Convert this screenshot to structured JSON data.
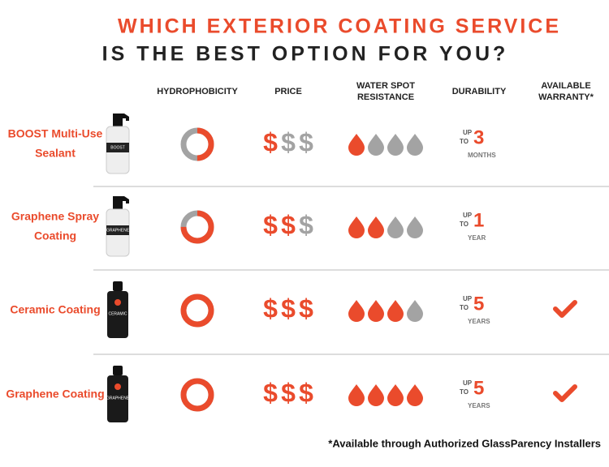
{
  "title": {
    "line1": "WHICH EXTERIOR COATING SERVICE",
    "line2": "IS THE BEST OPTION FOR YOU?"
  },
  "columns": [
    [
      "HYDROPHOBICITY"
    ],
    [
      "PRICE"
    ],
    [
      "WATER SPOT",
      "RESISTANCE"
    ],
    [
      "DURABILITY"
    ],
    [
      "AVAILABLE",
      "WARRANTY*"
    ]
  ],
  "price_symbol": "$",
  "scale": {
    "price": 3,
    "water_spot_resistance": 4
  },
  "rows": [
    {
      "name": [
        "BOOST Multi-Use",
        "Sealant"
      ],
      "bottle_label": "BOOST",
      "bottle": "spray",
      "hydrophobicity": 50,
      "price": 1,
      "water_spot_resistance": 1,
      "durability": {
        "up": "UP",
        "to": "TO",
        "value": 3,
        "unit": "MONTHS"
      },
      "warranty": false
    },
    {
      "name": [
        "Graphene Spray",
        "Coating"
      ],
      "bottle_label": "GRAPHENE",
      "bottle": "spray",
      "hydrophobicity": 75,
      "price": 2,
      "water_spot_resistance": 2,
      "durability": {
        "up": "UP",
        "to": "TO",
        "value": 1,
        "unit": "YEAR"
      },
      "warranty": false
    },
    {
      "name": [
        "Ceramic Coating"
      ],
      "bottle_label": "CERAMIC",
      "bottle": "dropper",
      "hydrophobicity": 100,
      "price": 3,
      "water_spot_resistance": 3,
      "durability": {
        "up": "UP",
        "to": "TO",
        "value": 5,
        "unit": "YEARS"
      },
      "warranty": true
    },
    {
      "name": [
        "Graphene Coating"
      ],
      "bottle_label": "GRAPHENE",
      "bottle": "dropper",
      "hydrophobicity": 100,
      "price": 3,
      "water_spot_resistance": 4,
      "durability": {
        "up": "UP",
        "to": "TO",
        "value": 5,
        "unit": "YEARS"
      },
      "warranty": true
    }
  ],
  "footnote": "*Available through Authorized GlassParency Installers"
}
